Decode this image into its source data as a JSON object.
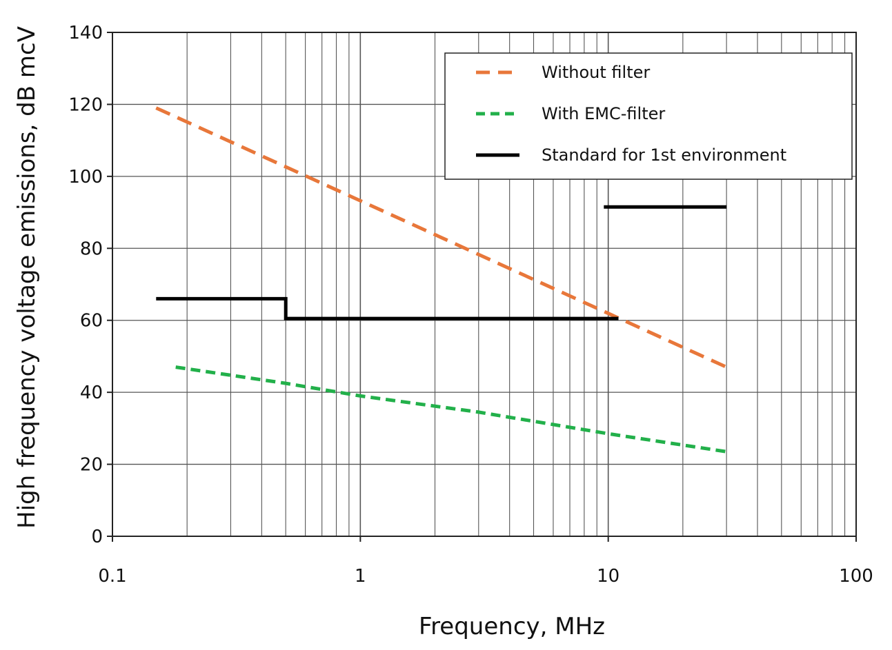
{
  "chart_data": {
    "type": "line",
    "xlabel": "Frequency, MHz",
    "ylabel": "High frequency voltage emissions, dB mcV",
    "x_scale": "log",
    "xlim": [
      0.1,
      100
    ],
    "ylim": [
      0,
      140
    ],
    "x_ticks": [
      {
        "value": 0.1,
        "label": "0.1"
      },
      {
        "value": 1,
        "label": "1"
      },
      {
        "value": 10,
        "label": "10"
      },
      {
        "value": 100,
        "label": "100"
      }
    ],
    "y_ticks": [
      {
        "value": 0,
        "label": "0"
      },
      {
        "value": 20,
        "label": "20"
      },
      {
        "value": 40,
        "label": "40"
      },
      {
        "value": 60,
        "label": "60"
      },
      {
        "value": 80,
        "label": "80"
      },
      {
        "value": 100,
        "label": "100"
      },
      {
        "value": 120,
        "label": "120"
      },
      {
        "value": 140,
        "label": "140"
      }
    ],
    "grid": true,
    "legend_position": "top-right",
    "series": [
      {
        "name": "Without filter",
        "color": "#e8773a",
        "style": "long-dash",
        "points": [
          [
            0.15,
            119
          ],
          [
            30,
            47
          ]
        ]
      },
      {
        "name": "With EMC-filter",
        "color": "#22b04a",
        "style": "short-dash",
        "points": [
          [
            0.18,
            47
          ],
          [
            0.5,
            42.5
          ],
          [
            1,
            39
          ],
          [
            3,
            34.5
          ],
          [
            10,
            28.5
          ],
          [
            30,
            23.5
          ]
        ]
      },
      {
        "name": "Standard for 1st environment",
        "color": "#000000",
        "style": "solid",
        "segments": [
          [
            [
              0.15,
              66
            ],
            [
              0.5,
              66
            ],
            [
              0.5,
              60.5
            ],
            [
              11,
              60.5
            ]
          ],
          [
            [
              9.6,
              91.5
            ],
            [
              30,
              91.5
            ]
          ]
        ]
      }
    ]
  }
}
